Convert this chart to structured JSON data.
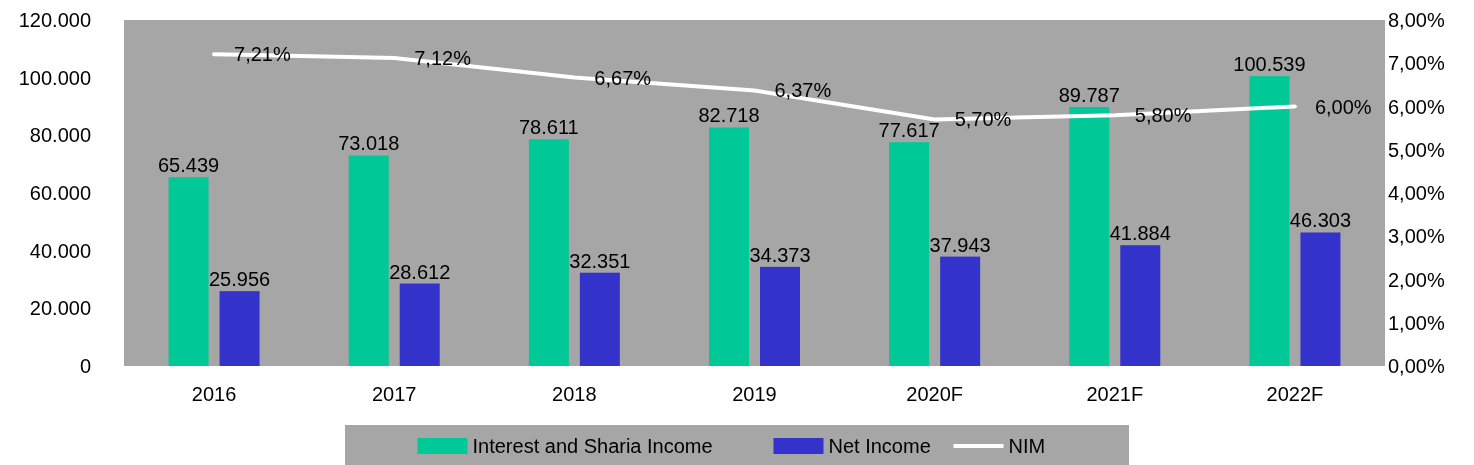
{
  "chart_data": {
    "type": "bar",
    "categories": [
      "2016",
      "2017",
      "2018",
      "2019",
      "2020F",
      "2021F",
      "2022F"
    ],
    "series": [
      {
        "name": "Interest and Sharia Income",
        "color": "#00c896",
        "values": [
          65439,
          73018,
          78611,
          82718,
          77617,
          89787,
          100539
        ],
        "value_labels": [
          "65.439",
          "73.018",
          "78.611",
          "82.718",
          "77.617",
          "89.787",
          "100.539"
        ]
      },
      {
        "name": "Net Income",
        "type": "bar",
        "color": "#3333cc",
        "values": [
          25956,
          28612,
          32351,
          34373,
          37943,
          41884,
          46303
        ],
        "value_labels": [
          "25.956",
          "28.612",
          "32.351",
          "34.373",
          "37.943",
          "41.884",
          "46.303"
        ]
      },
      {
        "name": "NIM",
        "type": "line",
        "axis": "y2",
        "color": "#ffffff",
        "values": [
          7.21,
          7.12,
          6.67,
          6.37,
          5.7,
          5.8,
          6.0
        ],
        "value_labels": [
          "7,21%",
          "7,12%",
          "6,67%",
          "6,37%",
          "5,70%",
          "5,80%",
          "6,00%"
        ]
      }
    ],
    "ylim": [
      0,
      120000
    ],
    "yticks": [
      {
        "value": 0,
        "label": "0"
      },
      {
        "value": 20000,
        "label": "20.000"
      },
      {
        "value": 40000,
        "label": "40.000"
      },
      {
        "value": 60000,
        "label": "60.000"
      },
      {
        "value": 80000,
        "label": "80.000"
      },
      {
        "value": 100000,
        "label": "100.000"
      },
      {
        "value": 120000,
        "label": "120.000"
      }
    ],
    "y2lim": [
      0,
      8
    ],
    "y2ticks": [
      {
        "value": 0,
        "label": "0,00%"
      },
      {
        "value": 1,
        "label": "1,00%"
      },
      {
        "value": 2,
        "label": "2,00%"
      },
      {
        "value": 3,
        "label": "3,00%"
      },
      {
        "value": 4,
        "label": "4,00%"
      },
      {
        "value": 5,
        "label": "5,00%"
      },
      {
        "value": 6,
        "label": "6,00%"
      },
      {
        "value": 7,
        "label": "7,00%"
      },
      {
        "value": 8,
        "label": "8,00%"
      }
    ],
    "legend": "bottom",
    "grid": false,
    "marker": "none",
    "line_style": "solid"
  }
}
